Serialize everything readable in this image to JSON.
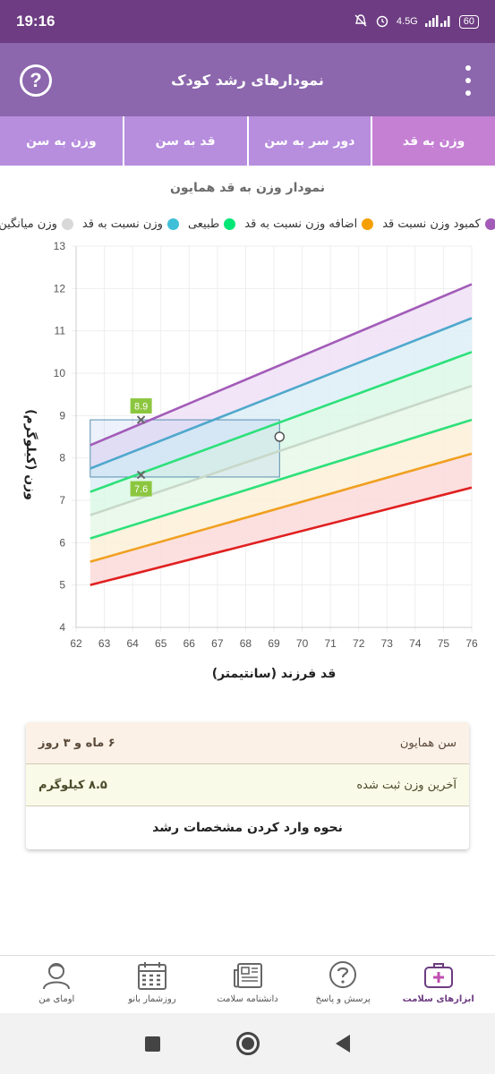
{
  "status": {
    "time": "19:16",
    "network": "4.5G",
    "battery": "60"
  },
  "header": {
    "title": "نمودارهای رشد کودک",
    "help_icon": "help-circle-icon",
    "menu_icon": "more-vertical-icon"
  },
  "tabs": [
    {
      "label": "وزن به سن",
      "active": false
    },
    {
      "label": "قد به سن",
      "active": false
    },
    {
      "label": "دور سر به سن",
      "active": false
    },
    {
      "label": "وزن به قد",
      "active": true
    }
  ],
  "chart_title": "نمودار وزن به قد همایون",
  "legend": [
    {
      "label": "کمبود وزن نسبت قد",
      "color": "#9b59b6"
    },
    {
      "label": "اضافه وزن نسبت به قد",
      "color": "#f5a000"
    },
    {
      "label": "طبیعی",
      "color": "#00e676"
    },
    {
      "label": "وزن نسبت به قد",
      "color": "#40c0d8"
    },
    {
      "label": "وزن میانگین",
      "color": "#d8d8d8"
    }
  ],
  "chart_data": {
    "type": "line",
    "xlabel": "قد فرزند (سانتیمتر)",
    "ylabel": "وزن (کیلوگرم)",
    "xlim": [
      62,
      76
    ],
    "ylim": [
      4,
      13
    ],
    "x_ticks": [
      "62",
      "63",
      "64",
      "65",
      "66",
      "67",
      "68",
      "69",
      "70",
      "71",
      "72",
      "73",
      "74",
      "75",
      "76"
    ],
    "y_ticks": [
      "4",
      "5",
      "6",
      "7",
      "8",
      "9",
      "10",
      "11",
      "12",
      "13"
    ],
    "series": [
      {
        "color": "#a25cb8",
        "x": [
          62.5,
          76
        ],
        "y": [
          8.3,
          12.1
        ]
      },
      {
        "color": "#4fa8cc",
        "x": [
          62.5,
          76
        ],
        "y": [
          7.75,
          11.3
        ]
      },
      {
        "color": "#2de07a",
        "x": [
          62.5,
          76
        ],
        "y": [
          7.2,
          10.5
        ]
      },
      {
        "color": "#c8d8c8",
        "x": [
          62.5,
          76
        ],
        "y": [
          6.65,
          9.7
        ]
      },
      {
        "color": "#2de07a",
        "x": [
          62.5,
          76
        ],
        "y": [
          6.1,
          8.9
        ]
      },
      {
        "color": "#f0a020",
        "x": [
          62.5,
          76
        ],
        "y": [
          5.55,
          8.1
        ]
      },
      {
        "color": "#e02020",
        "x": [
          62.5,
          76
        ],
        "y": [
          5.0,
          7.3
        ]
      }
    ],
    "band_colors": [
      "#efe0f6",
      "#dceef6",
      "#dcf8e6",
      "#e6f8e8",
      "#fdf0d8",
      "#fbdada"
    ],
    "point": {
      "x": 69.2,
      "y": 8.5
    },
    "markers": [
      {
        "x": 64.3,
        "y": 8.9,
        "label": "8.9"
      },
      {
        "x": 64.3,
        "y": 7.6,
        "label": "7.6"
      }
    ],
    "box": {
      "x": [
        62.5,
        69.2
      ],
      "y": [
        7.55,
        8.9
      ]
    }
  },
  "info": {
    "age_label": "سن همایون",
    "age_value": "۶ ماه و ۳ روز",
    "weight_label": "آخرین وزن ثبت شده",
    "weight_value": "۸.۵ کیلوگرم",
    "link": "نحوه وارد کردن مشخصات رشد"
  },
  "bottom_nav": [
    {
      "label": "ابزارهای سلامت",
      "icon": "medical-kit-icon",
      "active": true
    },
    {
      "label": "پرسش و پاسخ",
      "icon": "question-bubble-icon",
      "active": false
    },
    {
      "label": "دانشنامه سلامت",
      "icon": "newspaper-icon",
      "active": false
    },
    {
      "label": "روزشمار بانو",
      "icon": "calendar-icon",
      "active": false
    },
    {
      "label": "اومای من",
      "icon": "user-profile-icon",
      "active": false
    }
  ]
}
